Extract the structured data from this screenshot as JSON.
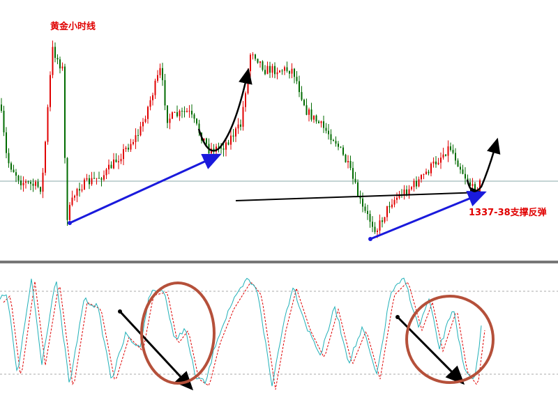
{
  "title": "黄金小时线",
  "annotation": "1337-38支撑反弹"
}
